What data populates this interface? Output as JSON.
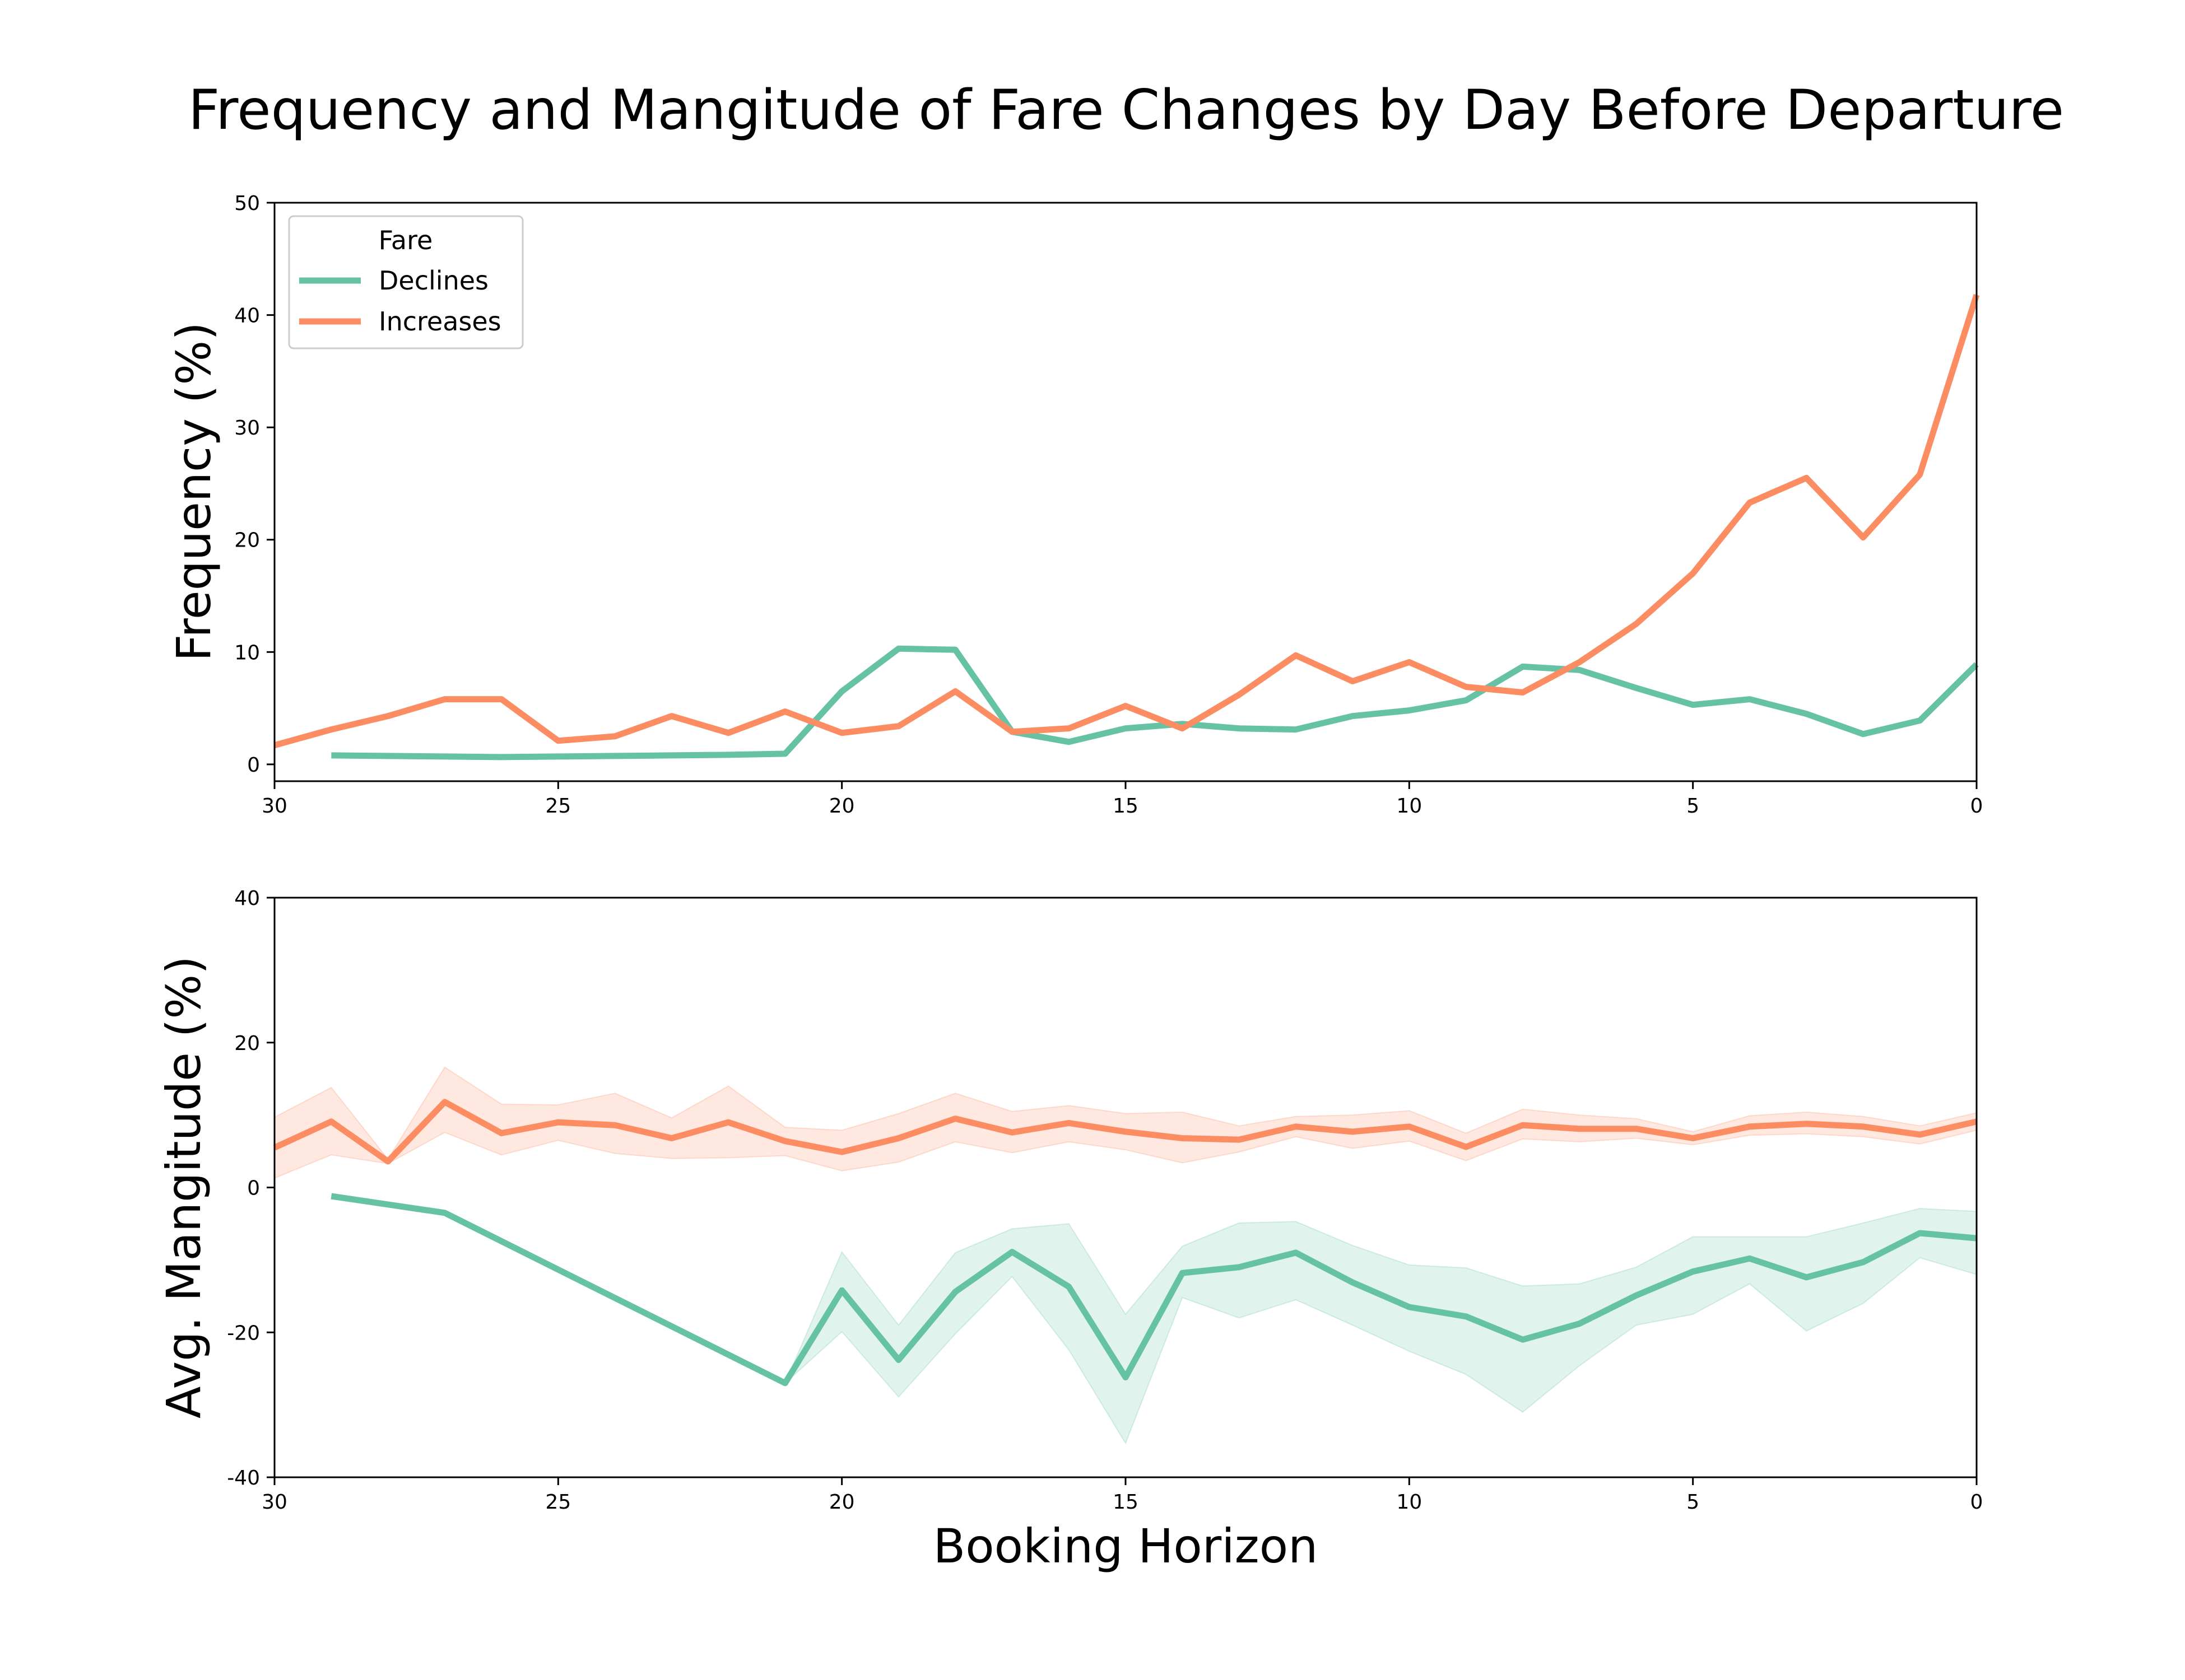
{
  "title": "Frequency and Mangitude of Fare Changes by Day Before Departure",
  "colors": {
    "declines": "#66c2a5",
    "increases": "#fc8d62"
  },
  "chart_data": [
    {
      "type": "line",
      "ylabel": "Frequency (%)",
      "xlim": [
        30,
        0
      ],
      "ylim": [
        -1.5,
        50
      ],
      "xticks": [
        "30",
        "25",
        "20",
        "15",
        "10",
        "5",
        "0"
      ],
      "yticks": [
        "0",
        "10",
        "20",
        "30",
        "40",
        "50"
      ],
      "grid": false,
      "legend": {
        "title": "Fare",
        "position": "top-left",
        "labels": [
          "Declines",
          "Increases"
        ]
      },
      "series": [
        {
          "name": "Declines",
          "x": [
            29,
            28,
            27,
            26,
            25,
            24,
            23,
            22,
            21,
            20,
            19,
            18,
            17,
            16,
            15,
            14,
            13,
            12,
            11,
            10,
            9,
            8,
            7,
            6,
            5,
            4,
            3,
            2,
            1,
            0
          ],
          "y": [
            0.8,
            0.75,
            0.7,
            0.65,
            0.7,
            0.75,
            0.8,
            0.85,
            0.95,
            6.5,
            10.3,
            10.2,
            2.9,
            2.0,
            3.2,
            3.6,
            3.2,
            3.1,
            4.3,
            4.8,
            5.7,
            8.7,
            8.4,
            6.8,
            5.3,
            5.8,
            4.5,
            2.7,
            3.9,
            8.9
          ]
        },
        {
          "name": "Increases",
          "x": [
            30,
            29,
            28,
            27,
            26,
            25,
            24,
            23,
            22,
            21,
            20,
            19,
            18,
            17,
            16,
            15,
            14,
            13,
            12,
            11,
            10,
            9,
            8,
            7,
            6,
            5,
            4,
            3,
            2,
            1,
            0
          ],
          "y": [
            1.7,
            3.1,
            4.3,
            5.8,
            5.8,
            2.1,
            2.5,
            4.3,
            2.8,
            4.7,
            2.8,
            3.4,
            6.5,
            2.9,
            3.2,
            5.2,
            3.2,
            6.2,
            9.7,
            7.4,
            9.1,
            6.9,
            6.4,
            9.1,
            12.5,
            17.0,
            23.3,
            25.5,
            20.2,
            25.8,
            41.8
          ]
        }
      ]
    },
    {
      "type": "line",
      "ylabel": "Avg. Mangitude (%)",
      "xlabel": "Booking Horizon",
      "xlim": [
        30,
        0
      ],
      "ylim": [
        -40,
        40
      ],
      "xticks": [
        "30",
        "25",
        "20",
        "15",
        "10",
        "5",
        "0"
      ],
      "yticks": [
        "40",
        "20",
        "0",
        "-20",
        "-40"
      ],
      "grid": false,
      "series": [
        {
          "name": "Declines",
          "x": [
            29,
            27,
            21,
            20,
            19,
            18,
            17,
            16,
            15,
            14,
            13,
            12,
            11,
            10,
            9,
            8,
            7,
            6,
            5,
            4,
            3,
            2,
            1,
            0
          ],
          "y": [
            -1.2,
            -3.5,
            -27.0,
            -14.2,
            -23.8,
            -14.4,
            -8.9,
            -13.7,
            -26.2,
            -11.8,
            -11.0,
            -9.0,
            -13.1,
            -16.5,
            -17.8,
            -21.0,
            -18.8,
            -14.9,
            -11.6,
            -9.8,
            -12.4,
            -10.3,
            -6.3,
            -7.0
          ],
          "band_upper": [
            -1.2,
            -3.5,
            -27.0,
            -8.9,
            -19.0,
            -9.0,
            -5.7,
            -5.0,
            -17.5,
            -8.1,
            -4.9,
            -4.7,
            -8.0,
            -10.7,
            -11.1,
            -13.6,
            -13.3,
            -11.0,
            -6.8,
            -6.8,
            -6.8,
            -4.9,
            -2.9,
            -3.3
          ],
          "band_lower": [
            -1.2,
            -3.5,
            -27.0,
            -19.9,
            -28.9,
            -20.2,
            -12.3,
            -22.4,
            -35.3,
            -15.2,
            -18.0,
            -15.5,
            -19.0,
            -22.6,
            -25.8,
            -31.0,
            -24.6,
            -19.0,
            -17.5,
            -13.3,
            -19.8,
            -16.0,
            -9.7,
            -12.0
          ]
        },
        {
          "name": "Increases",
          "x": [
            30,
            29,
            28,
            27,
            26,
            25,
            24,
            23,
            22,
            21,
            20,
            19,
            18,
            17,
            16,
            15,
            14,
            13,
            12,
            11,
            10,
            9,
            8,
            7,
            6,
            5,
            4,
            3,
            2,
            1,
            0
          ],
          "y": [
            5.5,
            9.1,
            3.6,
            11.8,
            7.5,
            9.0,
            8.6,
            6.8,
            9.0,
            6.4,
            4.9,
            6.8,
            9.5,
            7.6,
            8.9,
            7.7,
            6.8,
            6.6,
            8.4,
            7.7,
            8.4,
            5.6,
            8.6,
            8.1,
            8.1,
            6.8,
            8.4,
            8.8,
            8.4,
            7.3,
            9.1
          ],
          "band_upper": [
            9.7,
            13.8,
            3.9,
            16.6,
            11.5,
            11.4,
            13.0,
            9.6,
            14.0,
            8.3,
            7.9,
            10.2,
            13.0,
            10.5,
            11.3,
            10.2,
            10.4,
            8.5,
            9.8,
            10.0,
            10.6,
            7.5,
            10.8,
            10.0,
            9.5,
            7.7,
            9.9,
            10.4,
            9.8,
            8.5,
            10.3
          ],
          "band_lower": [
            1.3,
            4.5,
            3.3,
            7.6,
            4.5,
            6.5,
            4.7,
            4.0,
            4.1,
            4.4,
            2.3,
            3.5,
            6.3,
            4.8,
            6.3,
            5.2,
            3.4,
            4.9,
            7.0,
            5.4,
            6.4,
            3.7,
            6.7,
            6.3,
            6.8,
            5.9,
            7.2,
            7.4,
            7.0,
            6.0,
            7.9
          ]
        }
      ]
    }
  ]
}
